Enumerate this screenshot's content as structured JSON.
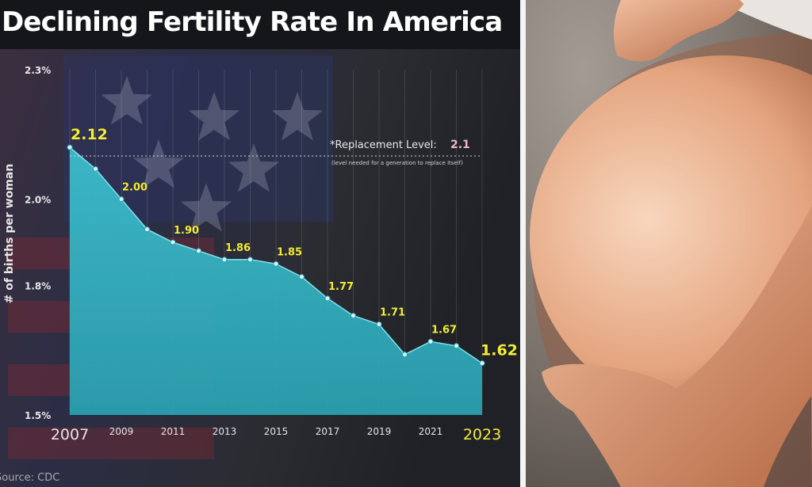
{
  "chart_data": {
    "type": "area",
    "title": "Declining Fertility Rate In America",
    "ylabel": "# of births per woman",
    "xlabel": "",
    "x": [
      2007,
      2008,
      2009,
      2010,
      2011,
      2012,
      2013,
      2014,
      2015,
      2016,
      2017,
      2018,
      2019,
      2020,
      2021,
      2022,
      2023
    ],
    "values": [
      2.12,
      2.07,
      2.0,
      1.93,
      1.9,
      1.88,
      1.86,
      1.86,
      1.85,
      1.82,
      1.77,
      1.73,
      1.71,
      1.64,
      1.67,
      1.66,
      1.62
    ],
    "ylim": [
      1.5,
      2.3
    ],
    "y_ticks": [
      "2.3%",
      "2.0%",
      "1.8%",
      "1.5%"
    ],
    "y_tick_values": [
      2.3,
      2.0,
      1.8,
      1.5
    ],
    "x_tick_labels": [
      {
        "year": 2007,
        "label": "2007"
      },
      {
        "year": 2009,
        "label": "2009"
      },
      {
        "year": 2011,
        "label": "2011"
      },
      {
        "year": 2013,
        "label": "2013"
      },
      {
        "year": 2015,
        "label": "2015"
      },
      {
        "year": 2017,
        "label": "2017"
      },
      {
        "year": 2019,
        "label": "2019"
      },
      {
        "year": 2021,
        "label": "2021"
      },
      {
        "year": 2023,
        "label": "2023"
      }
    ],
    "data_labels": [
      {
        "year": 2007,
        "label": "2.12"
      },
      {
        "year": 2009,
        "label": "2.00"
      },
      {
        "year": 2011,
        "label": "1.90"
      },
      {
        "year": 2013,
        "label": "1.86"
      },
      {
        "year": 2015,
        "label": "1.85"
      },
      {
        "year": 2017,
        "label": "1.77"
      },
      {
        "year": 2019,
        "label": "1.71"
      },
      {
        "year": 2021,
        "label": "1.67"
      },
      {
        "year": 2023,
        "label": "1.62"
      }
    ],
    "reference_line": {
      "value": 2.1,
      "label": "*Replacement Level:",
      "value_label": "2.1",
      "note": "(level needed for a generation to replace itself)"
    },
    "source": "Source: CDC",
    "grid": true
  },
  "colors": {
    "area_fill": "#34b3c2",
    "data_label": "#f3ee37",
    "reference_value": "#f2b3c2",
    "axis_text": "#e6e6e6"
  }
}
